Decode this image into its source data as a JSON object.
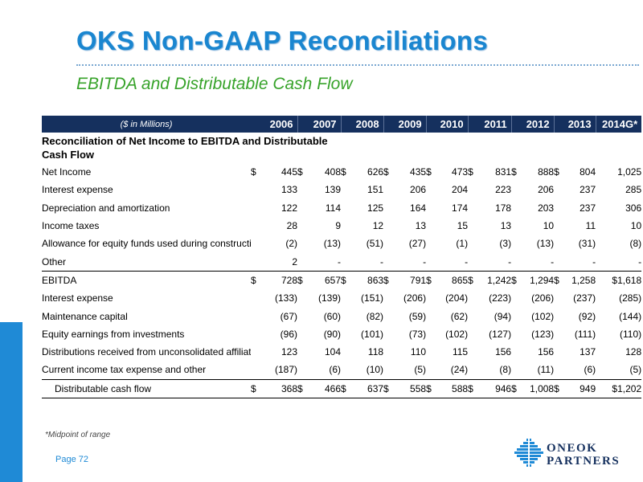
{
  "header": {
    "title": "OKS Non-GAAP Reconciliations",
    "subtitle": "EBITDA and Distributable Cash Flow"
  },
  "table": {
    "unit_label": "($ in Millions)",
    "years": [
      "2006",
      "2007",
      "2008",
      "2009",
      "2010",
      "2011",
      "2012",
      "2013",
      "2014G*"
    ],
    "section_title": "Reconciliation of Net Income to EBITDA and Distributable Cash Flow",
    "rows": [
      {
        "label": "Net Income",
        "values": [
          "$",
          "445",
          "$",
          "408",
          "$",
          "626",
          "$",
          "435",
          "$",
          "473",
          "$",
          "831",
          "$",
          "888",
          "$",
          "804",
          "",
          "1,025"
        ]
      },
      {
        "label": "Interest expense",
        "values": [
          "",
          "133",
          "",
          "139",
          "",
          "151",
          "",
          "206",
          "",
          "204",
          "",
          "223",
          "",
          "206",
          "",
          "237",
          "",
          "285"
        ]
      },
      {
        "label": "Depreciation and amortization",
        "values": [
          "",
          "122",
          "",
          "114",
          "",
          "125",
          "",
          "164",
          "",
          "174",
          "",
          "178",
          "",
          "203",
          "",
          "237",
          "",
          "306"
        ]
      },
      {
        "label": "Income taxes",
        "values": [
          "",
          "28",
          "",
          "9",
          "",
          "12",
          "",
          "13",
          "",
          "15",
          "",
          "13",
          "",
          "10",
          "",
          "11",
          "",
          "10"
        ]
      },
      {
        "label": "Allowance for equity funds used during construction",
        "values": [
          "",
          "(2)",
          "",
          "(13)",
          "",
          "(51)",
          "",
          "(27)",
          "",
          "(1)",
          "",
          "(3)",
          "",
          "(13)",
          "",
          "(31)",
          "",
          "(8)"
        ]
      },
      {
        "label": "Other",
        "values": [
          "",
          "2",
          "",
          "-",
          "",
          "-",
          "",
          "-",
          "",
          "-",
          "",
          "-",
          "",
          "-",
          "",
          "-",
          "",
          "-"
        ]
      },
      {
        "label": "EBITDA",
        "values": [
          "$",
          "728",
          "$",
          "657",
          "$",
          "863",
          "$",
          "791",
          "$",
          "865",
          "$",
          "1,242",
          "$",
          "1,294",
          "$",
          "1,258",
          "",
          "$1,618"
        ]
      },
      {
        "label": "Interest expense",
        "values": [
          "",
          "(133)",
          "",
          "(139)",
          "",
          "(151)",
          "",
          "(206)",
          "",
          "(204)",
          "",
          "(223)",
          "",
          "(206)",
          "",
          "(237)",
          "",
          "(285)"
        ]
      },
      {
        "label": "Maintenance capital",
        "values": [
          "",
          "(67)",
          "",
          "(60)",
          "",
          "(82)",
          "",
          "(59)",
          "",
          "(62)",
          "",
          "(94)",
          "",
          "(102)",
          "",
          "(92)",
          "",
          "(144)"
        ]
      },
      {
        "label": "Equity earnings from investments",
        "values": [
          "",
          "(96)",
          "",
          "(90)",
          "",
          "(101)",
          "",
          "(73)",
          "",
          "(102)",
          "",
          "(127)",
          "",
          "(123)",
          "",
          "(111)",
          "",
          "(110)"
        ]
      },
      {
        "label": "Distributions received from unconsolidated affiliates",
        "values": [
          "",
          "123",
          "",
          "104",
          "",
          "118",
          "",
          "110",
          "",
          "115",
          "",
          "156",
          "",
          "156",
          "",
          "137",
          "",
          "128"
        ]
      },
      {
        "label": "Current income tax expense and other",
        "values": [
          "",
          "(187)",
          "",
          "(6)",
          "",
          "(10)",
          "",
          "(5)",
          "",
          "(24)",
          "",
          "(8)",
          "",
          "(11)",
          "",
          "(6)",
          "",
          "(5)"
        ]
      },
      {
        "label": "Distributable cash flow",
        "values": [
          "$",
          "368",
          "$",
          "466",
          "$",
          "637",
          "$",
          "558",
          "$",
          "588",
          "$",
          "946",
          "$",
          "1,008",
          "$",
          "949",
          "",
          "$1,202"
        ]
      }
    ]
  },
  "footnote": "*Midpoint of range",
  "page_label": "Page 72",
  "logo": {
    "line1": "ONEOK",
    "line2": "PARTNERS"
  },
  "colors": {
    "title_blue": "#1a86d0",
    "subtitle_green": "#37a32a",
    "header_navy": "#15305e",
    "accent_blue": "#1f8ad6"
  }
}
